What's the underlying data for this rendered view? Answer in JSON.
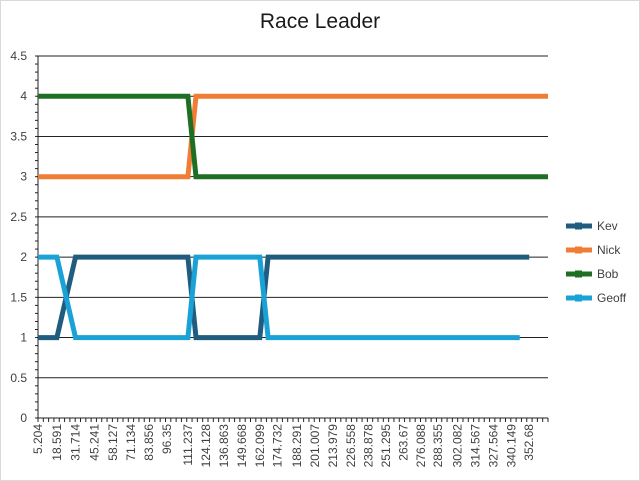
{
  "chart_data": {
    "type": "line",
    "title": "Race Leader",
    "xlabel": "",
    "ylabel": "",
    "ylim": [
      0,
      4.5
    ],
    "y_ticks": [
      "0",
      "0.5",
      "1",
      "1.5",
      "2",
      "2.5",
      "3",
      "3.5",
      "4",
      "4.5"
    ],
    "x_tick_labels": [
      "5.204",
      "18.591",
      "31.714",
      "45.241",
      "58.127",
      "71.134",
      "83.856",
      "96.35",
      "111.237",
      "124.128",
      "136.863",
      "149.668",
      "162.099",
      "174.732",
      "188.291",
      "201.007",
      "213.979",
      "226.558",
      "238.878",
      "251.295",
      "263.67",
      "276.088",
      "288.355",
      "302.082",
      "314.567",
      "327.564",
      "340.149",
      "352.68"
    ],
    "grid": "horizontal",
    "legend_position": "right",
    "series": [
      {
        "name": "Kev",
        "color": "#1f5c7e",
        "points": [
          [
            5.204,
            1
          ],
          [
            18.591,
            1
          ],
          [
            31.714,
            2
          ],
          [
            111.237,
            2
          ],
          [
            117,
            1
          ],
          [
            162.099,
            1
          ],
          [
            168,
            2
          ],
          [
            352.68,
            2
          ]
        ]
      },
      {
        "name": "Nick",
        "color": "#f07d35",
        "points": [
          [
            5.204,
            3
          ],
          [
            111.237,
            3
          ],
          [
            117,
            4
          ],
          [
            366,
            4
          ]
        ]
      },
      {
        "name": "Bob",
        "color": "#1e6f23",
        "points": [
          [
            5.204,
            4
          ],
          [
            111.237,
            4
          ],
          [
            117,
            3
          ],
          [
            366,
            3
          ]
        ]
      },
      {
        "name": "Geoff",
        "color": "#1aa1d6",
        "points": [
          [
            5.204,
            2
          ],
          [
            18.591,
            2
          ],
          [
            31.714,
            1
          ],
          [
            111.237,
            1
          ],
          [
            117,
            2
          ],
          [
            162.099,
            2
          ],
          [
            168,
            1
          ],
          [
            346,
            1
          ]
        ]
      }
    ]
  }
}
